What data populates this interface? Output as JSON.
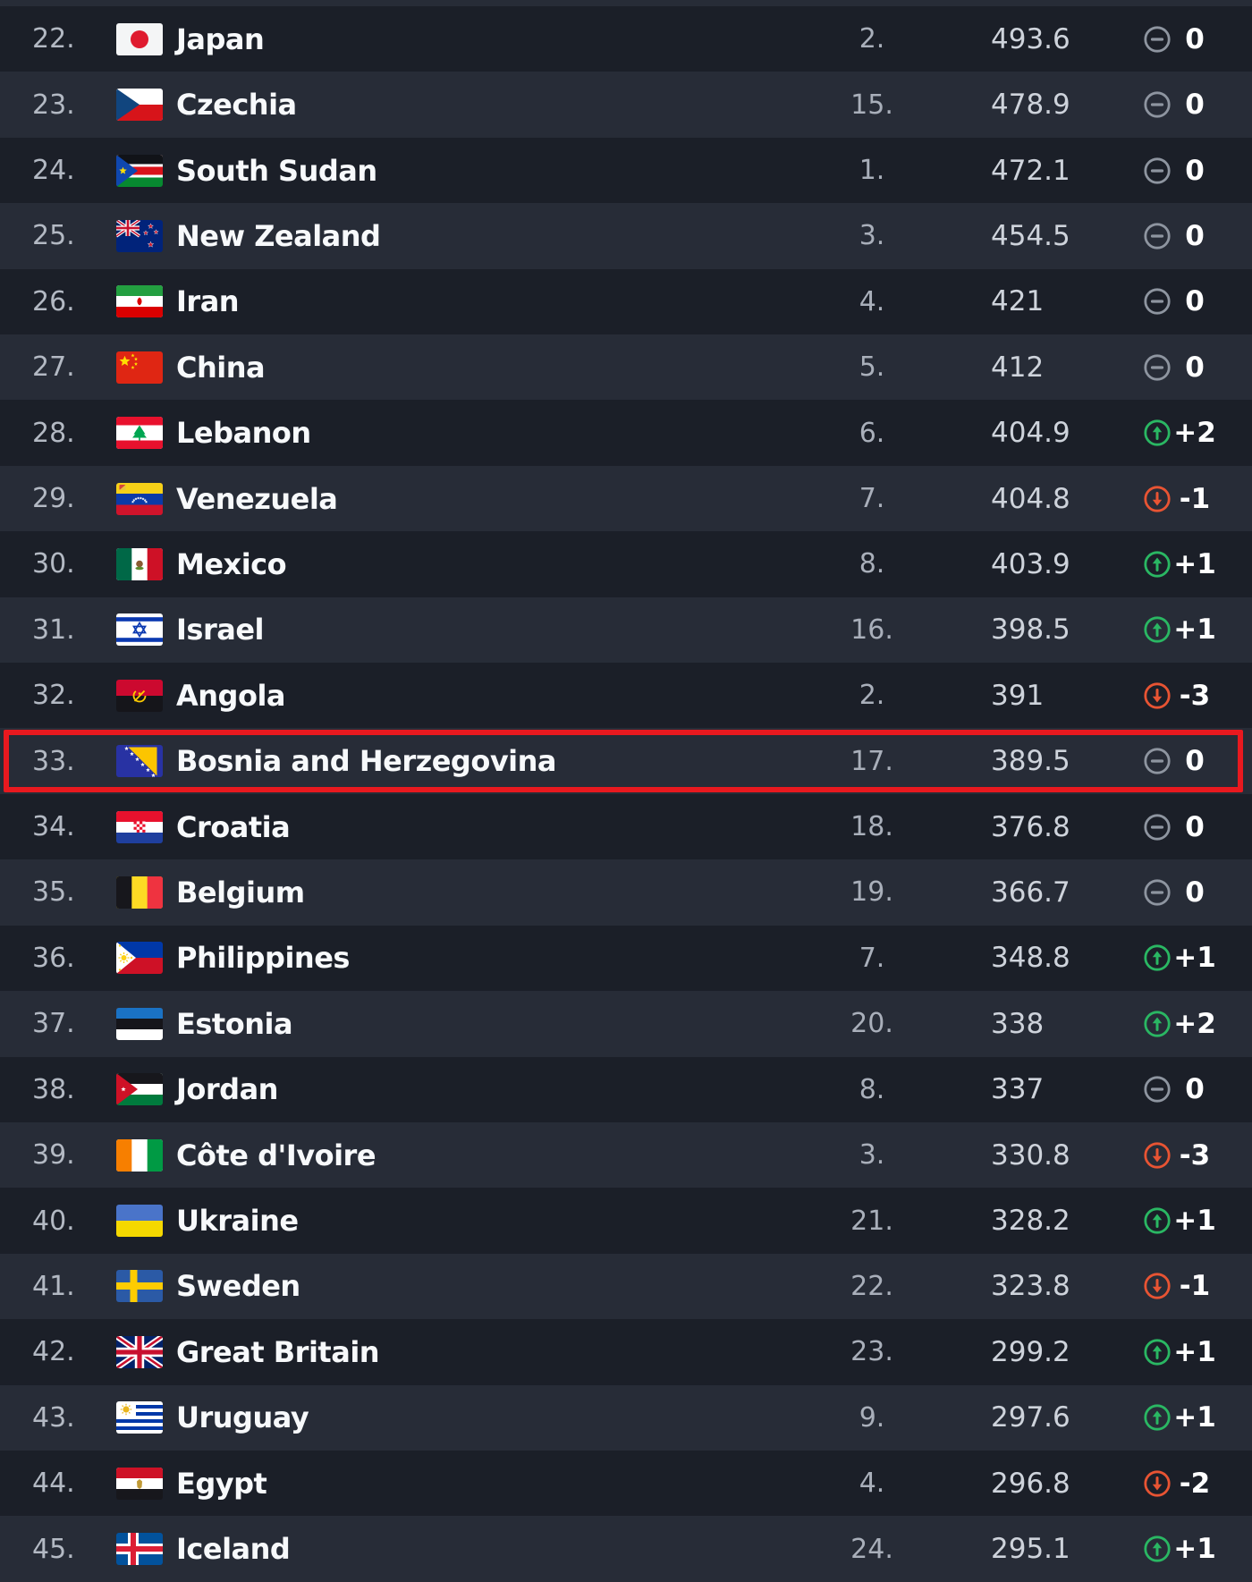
{
  "colors": {
    "accent_red": "#e8191f",
    "up_green": "#2ab763",
    "down_red": "#e85433",
    "neutral_gray": "#8e95a0",
    "row_dark": "#1b1f28",
    "row_light": "#272c37"
  },
  "table": {
    "highlighted_rank": "33.",
    "rows": [
      {
        "rank": "22.",
        "country": "Japan",
        "flag": "japan",
        "continental_rank": "2.",
        "points": "493.6",
        "change": {
          "direction": "same",
          "label": "0"
        },
        "highlighted": false
      },
      {
        "rank": "23.",
        "country": "Czechia",
        "flag": "czechia",
        "continental_rank": "15.",
        "points": "478.9",
        "change": {
          "direction": "same",
          "label": "0"
        },
        "highlighted": false
      },
      {
        "rank": "24.",
        "country": "South Sudan",
        "flag": "south-sudan",
        "continental_rank": "1.",
        "points": "472.1",
        "change": {
          "direction": "same",
          "label": "0"
        },
        "highlighted": false
      },
      {
        "rank": "25.",
        "country": "New Zealand",
        "flag": "new-zealand",
        "continental_rank": "3.",
        "points": "454.5",
        "change": {
          "direction": "same",
          "label": "0"
        },
        "highlighted": false
      },
      {
        "rank": "26.",
        "country": "Iran",
        "flag": "iran",
        "continental_rank": "4.",
        "points": "421",
        "change": {
          "direction": "same",
          "label": "0"
        },
        "highlighted": false
      },
      {
        "rank": "27.",
        "country": "China",
        "flag": "china",
        "continental_rank": "5.",
        "points": "412",
        "change": {
          "direction": "same",
          "label": "0"
        },
        "highlighted": false
      },
      {
        "rank": "28.",
        "country": "Lebanon",
        "flag": "lebanon",
        "continental_rank": "6.",
        "points": "404.9",
        "change": {
          "direction": "up",
          "label": "+2"
        },
        "highlighted": false
      },
      {
        "rank": "29.",
        "country": "Venezuela",
        "flag": "venezuela",
        "continental_rank": "7.",
        "points": "404.8",
        "change": {
          "direction": "down",
          "label": "-1"
        },
        "highlighted": false
      },
      {
        "rank": "30.",
        "country": "Mexico",
        "flag": "mexico",
        "continental_rank": "8.",
        "points": "403.9",
        "change": {
          "direction": "up",
          "label": "+1"
        },
        "highlighted": false
      },
      {
        "rank": "31.",
        "country": "Israel",
        "flag": "israel",
        "continental_rank": "16.",
        "points": "398.5",
        "change": {
          "direction": "up",
          "label": "+1"
        },
        "highlighted": false
      },
      {
        "rank": "32.",
        "country": "Angola",
        "flag": "angola",
        "continental_rank": "2.",
        "points": "391",
        "change": {
          "direction": "down",
          "label": "-3"
        },
        "highlighted": false
      },
      {
        "rank": "33.",
        "country": "Bosnia and Herzegovina",
        "flag": "bosnia",
        "continental_rank": "17.",
        "points": "389.5",
        "change": {
          "direction": "same",
          "label": "0"
        },
        "highlighted": true
      },
      {
        "rank": "34.",
        "country": "Croatia",
        "flag": "croatia",
        "continental_rank": "18.",
        "points": "376.8",
        "change": {
          "direction": "same",
          "label": "0"
        },
        "highlighted": false
      },
      {
        "rank": "35.",
        "country": "Belgium",
        "flag": "belgium",
        "continental_rank": "19.",
        "points": "366.7",
        "change": {
          "direction": "same",
          "label": "0"
        },
        "highlighted": false
      },
      {
        "rank": "36.",
        "country": "Philippines",
        "flag": "philippines",
        "continental_rank": "7.",
        "points": "348.8",
        "change": {
          "direction": "up",
          "label": "+1"
        },
        "highlighted": false
      },
      {
        "rank": "37.",
        "country": "Estonia",
        "flag": "estonia",
        "continental_rank": "20.",
        "points": "338",
        "change": {
          "direction": "up",
          "label": "+2"
        },
        "highlighted": false
      },
      {
        "rank": "38.",
        "country": "Jordan",
        "flag": "jordan",
        "continental_rank": "8.",
        "points": "337",
        "change": {
          "direction": "same",
          "label": "0"
        },
        "highlighted": false
      },
      {
        "rank": "39.",
        "country": "Côte d'Ivoire",
        "flag": "cote-divoire",
        "continental_rank": "3.",
        "points": "330.8",
        "change": {
          "direction": "down",
          "label": "-3"
        },
        "highlighted": false
      },
      {
        "rank": "40.",
        "country": "Ukraine",
        "flag": "ukraine",
        "continental_rank": "21.",
        "points": "328.2",
        "change": {
          "direction": "up",
          "label": "+1"
        },
        "highlighted": false
      },
      {
        "rank": "41.",
        "country": "Sweden",
        "flag": "sweden",
        "continental_rank": "22.",
        "points": "323.8",
        "change": {
          "direction": "down",
          "label": "-1"
        },
        "highlighted": false
      },
      {
        "rank": "42.",
        "country": "Great Britain",
        "flag": "great-britain",
        "continental_rank": "23.",
        "points": "299.2",
        "change": {
          "direction": "up",
          "label": "+1"
        },
        "highlighted": false
      },
      {
        "rank": "43.",
        "country": "Uruguay",
        "flag": "uruguay",
        "continental_rank": "9.",
        "points": "297.6",
        "change": {
          "direction": "up",
          "label": "+1"
        },
        "highlighted": false
      },
      {
        "rank": "44.",
        "country": "Egypt",
        "flag": "egypt",
        "continental_rank": "4.",
        "points": "296.8",
        "change": {
          "direction": "down",
          "label": "-2"
        },
        "highlighted": false
      },
      {
        "rank": "45.",
        "country": "Iceland",
        "flag": "iceland",
        "continental_rank": "24.",
        "points": "295.1",
        "change": {
          "direction": "up",
          "label": "+1"
        },
        "highlighted": false
      }
    ]
  }
}
